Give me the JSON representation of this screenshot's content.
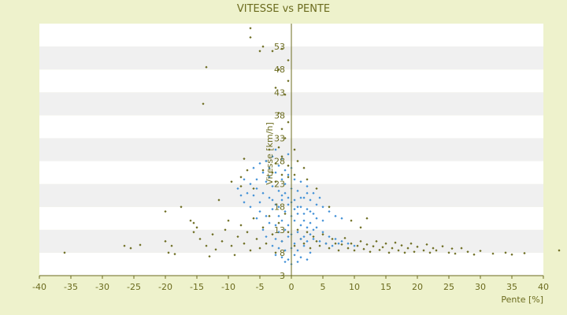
{
  "chart_data": {
    "type": "scatter",
    "title": "VITESSE vs PENTE",
    "xlabel": "Pente [%]",
    "ylabel": "Vitesse [km/h]",
    "xlim": [
      -40,
      40
    ],
    "ylim": [
      3,
      58
    ],
    "x_ticks": [
      -40,
      -35,
      -30,
      -25,
      -20,
      -15,
      -10,
      -5,
      0,
      5,
      10,
      15,
      20,
      25,
      30,
      35,
      40
    ],
    "y_ticks": [
      3,
      8,
      13,
      18,
      23,
      28,
      33,
      38,
      43,
      48,
      53
    ],
    "grid": true,
    "grid_bands": "alternating white / light grey horizontal bands",
    "legend": "none",
    "colors": {
      "background": "#eef2cc",
      "plot_band_light": "#ffffff",
      "plot_band_dark": "#f0f0f0",
      "axis_text": "#6b6b1e",
      "series_1": "#6b6b1e",
      "series_2": "#3f8fd6"
    },
    "series": [
      {
        "color": "#6b6b1e",
        "marker": "small diamond",
        "points": [
          [
            -36.0,
            8.0
          ],
          [
            -26.5,
            9.5
          ],
          [
            -25.5,
            9.0
          ],
          [
            -24.0,
            9.7
          ],
          [
            -20.0,
            10.5
          ],
          [
            -19.5,
            8.0
          ],
          [
            -19.0,
            9.5
          ],
          [
            -18.5,
            7.7
          ],
          [
            -20.0,
            17.0
          ],
          [
            -16.0,
            15.0
          ],
          [
            -15.5,
            12.5
          ],
          [
            -15.0,
            13.5
          ],
          [
            -14.5,
            11.0
          ],
          [
            -13.5,
            9.5
          ],
          [
            -13.0,
            7.2
          ],
          [
            -12.5,
            12.0
          ],
          [
            -12.0,
            8.7
          ],
          [
            -11.0,
            10.5
          ],
          [
            -10.5,
            13.0
          ],
          [
            -10.0,
            15.0
          ],
          [
            -9.5,
            9.5
          ],
          [
            -9.0,
            7.5
          ],
          [
            -8.5,
            11.5
          ],
          [
            -8.0,
            14.0
          ],
          [
            -7.5,
            10.0
          ],
          [
            -7.0,
            12.5
          ],
          [
            -6.5,
            8.5
          ],
          [
            -6.0,
            15.5
          ],
          [
            -5.5,
            11.0
          ],
          [
            -5.0,
            9.0
          ],
          [
            -4.5,
            13.5
          ],
          [
            -4.0,
            10.0
          ],
          [
            -3.5,
            16.0
          ],
          [
            -3.0,
            12.0
          ],
          [
            -2.5,
            8.0
          ],
          [
            -2.0,
            14.5
          ],
          [
            -1.5,
            10.5
          ],
          [
            -1.0,
            16.5
          ],
          [
            -0.5,
            12.5
          ],
          [
            0.5,
            9.5
          ],
          [
            1.0,
            13.0
          ],
          [
            1.5,
            11.0
          ],
          [
            2.0,
            10.0
          ],
          [
            2.5,
            12.5
          ],
          [
            3.0,
            9.0
          ],
          [
            3.5,
            11.5
          ],
          [
            4.0,
            10.5
          ],
          [
            4.5,
            9.5
          ],
          [
            5.0,
            12.0
          ],
          [
            5.5,
            10.0
          ],
          [
            6.0,
            9.0
          ],
          [
            6.5,
            11.0
          ],
          [
            7.0,
            10.0
          ],
          [
            7.5,
            8.5
          ],
          [
            8.0,
            9.8
          ],
          [
            8.5,
            11.2
          ],
          [
            9.0,
            9.0
          ],
          [
            9.5,
            10.0
          ],
          [
            10.0,
            8.5
          ],
          [
            10.5,
            9.5
          ],
          [
            11.0,
            10.5
          ],
          [
            11.5,
            8.8
          ],
          [
            12.0,
            9.8
          ],
          [
            12.5,
            8.2
          ],
          [
            13.0,
            9.4
          ],
          [
            13.5,
            10.5
          ],
          [
            14.0,
            8.6
          ],
          [
            14.5,
            9.2
          ],
          [
            15.0,
            10.0
          ],
          [
            15.5,
            8.0
          ],
          [
            16.0,
            9.0
          ],
          [
            16.5,
            10.2
          ],
          [
            17.0,
            8.5
          ],
          [
            17.5,
            9.6
          ],
          [
            18.0,
            8.0
          ],
          [
            18.5,
            9.0
          ],
          [
            19.0,
            10.0
          ],
          [
            19.5,
            8.2
          ],
          [
            20.0,
            9.3
          ],
          [
            21.0,
            8.5
          ],
          [
            21.5,
            9.8
          ],
          [
            22.0,
            8.0
          ],
          [
            22.5,
            9.0
          ],
          [
            23.0,
            8.5
          ],
          [
            24.0,
            9.4
          ],
          [
            25.0,
            8.0
          ],
          [
            25.5,
            8.9
          ],
          [
            26.0,
            7.8
          ],
          [
            27.0,
            9.0
          ],
          [
            28.0,
            8.2
          ],
          [
            29.0,
            7.6
          ],
          [
            30.0,
            8.4
          ],
          [
            32.0,
            7.8
          ],
          [
            34.0,
            8.0
          ],
          [
            35.0,
            7.6
          ],
          [
            37.0,
            7.9
          ],
          [
            42.5,
            8.5
          ],
          [
            -13.5,
            48.5
          ],
          [
            -14.0,
            40.5
          ],
          [
            -6.5,
            55.0
          ],
          [
            -5.0,
            52.0
          ],
          [
            -3.0,
            52.0
          ],
          [
            -2.0,
            48.0
          ],
          [
            -1.5,
            52.5
          ],
          [
            -1.0,
            42.5
          ],
          [
            -0.5,
            45.5
          ],
          [
            -2.0,
            38.5
          ],
          [
            -1.5,
            35.0
          ],
          [
            -0.5,
            36.5
          ],
          [
            -1.0,
            33.0
          ],
          [
            -2.0,
            31.0
          ],
          [
            -1.5,
            29.0
          ],
          [
            -2.5,
            27.5
          ],
          [
            -3.5,
            30.5
          ],
          [
            -4.0,
            28.0
          ],
          [
            -4.5,
            26.0
          ],
          [
            0.5,
            30.5
          ],
          [
            1.0,
            28.0
          ],
          [
            -0.5,
            27.0
          ],
          [
            -9.5,
            23.5
          ],
          [
            -11.5,
            19.5
          ],
          [
            -17.5,
            18.0
          ],
          [
            -15.5,
            14.5
          ],
          [
            9.5,
            15.0
          ],
          [
            11.0,
            13.5
          ],
          [
            12.0,
            15.5
          ],
          [
            6.0,
            18.0
          ],
          [
            4.0,
            22.0
          ],
          [
            2.5,
            24.0
          ],
          [
            2.0,
            26.5
          ],
          [
            0.5,
            25.0
          ],
          [
            -0.5,
            24.5
          ],
          [
            -1.5,
            25.0
          ],
          [
            -2.5,
            23.5
          ],
          [
            -3.0,
            25.5
          ],
          [
            -6.0,
            22.0
          ],
          [
            -7.0,
            26.0
          ],
          [
            -8.0,
            24.5
          ],
          [
            -7.5,
            28.5
          ],
          [
            -8.0,
            22.5
          ],
          [
            -2.5,
            44.0
          ],
          [
            -0.5,
            50.0
          ],
          [
            -6.5,
            57.0
          ],
          [
            -4.5,
            53.0
          ]
        ]
      },
      {
        "color": "#3f8fd6",
        "marker": "small diamond",
        "points": [
          [
            -6.0,
            20.5
          ],
          [
            -5.5,
            22.0
          ],
          [
            -5.0,
            19.0
          ],
          [
            -4.5,
            21.0
          ],
          [
            -4.0,
            23.5
          ],
          [
            -3.5,
            20.0
          ],
          [
            -3.0,
            22.5
          ],
          [
            -2.5,
            18.5
          ],
          [
            -2.0,
            21.5
          ],
          [
            -1.5,
            19.5
          ],
          [
            -1.0,
            23.0
          ],
          [
            -0.5,
            20.0
          ],
          [
            0.0,
            22.0
          ],
          [
            0.5,
            19.5
          ],
          [
            1.0,
            21.5
          ],
          [
            1.5,
            18.0
          ],
          [
            2.0,
            20.0
          ],
          [
            2.5,
            17.5
          ],
          [
            3.0,
            19.5
          ],
          [
            3.5,
            16.5
          ],
          [
            4.0,
            18.5
          ],
          [
            -5.0,
            17.0
          ],
          [
            -4.0,
            16.0
          ],
          [
            -3.0,
            17.5
          ],
          [
            -2.0,
            16.0
          ],
          [
            -1.0,
            17.0
          ],
          [
            0.0,
            16.0
          ],
          [
            1.0,
            16.5
          ],
          [
            2.0,
            15.0
          ],
          [
            3.0,
            14.5
          ],
          [
            4.0,
            15.5
          ],
          [
            5.0,
            15.0
          ],
          [
            -3.5,
            14.5
          ],
          [
            -2.5,
            14.0
          ],
          [
            -1.5,
            15.0
          ],
          [
            -0.5,
            14.0
          ],
          [
            0.5,
            15.0
          ],
          [
            1.5,
            14.0
          ],
          [
            2.5,
            13.5
          ],
          [
            3.5,
            13.0
          ],
          [
            -2.0,
            12.5
          ],
          [
            -1.0,
            13.0
          ],
          [
            0.0,
            12.0
          ],
          [
            1.0,
            12.5
          ],
          [
            2.0,
            11.5
          ],
          [
            3.0,
            12.0
          ],
          [
            -2.5,
            11.0
          ],
          [
            -1.5,
            10.5
          ],
          [
            -0.5,
            11.5
          ],
          [
            0.5,
            10.0
          ],
          [
            1.5,
            11.0
          ],
          [
            2.5,
            10.5
          ],
          [
            3.5,
            11.0
          ],
          [
            4.5,
            10.5
          ],
          [
            5.5,
            10.0
          ],
          [
            6.5,
            9.5
          ],
          [
            7.5,
            10.0
          ],
          [
            -3.0,
            9.5
          ],
          [
            -2.0,
            9.0
          ],
          [
            -1.0,
            8.5
          ],
          [
            0.0,
            9.0
          ],
          [
            1.0,
            8.5
          ],
          [
            2.0,
            9.5
          ],
          [
            3.0,
            8.0
          ],
          [
            -2.5,
            7.5
          ],
          [
            -1.5,
            7.0
          ],
          [
            -0.5,
            6.5
          ],
          [
            0.5,
            7.5
          ],
          [
            1.5,
            7.0
          ],
          [
            2.5,
            6.5
          ],
          [
            -1.0,
            6.0
          ],
          [
            0.0,
            5.5
          ],
          [
            1.0,
            6.0
          ],
          [
            -3.5,
            24.5
          ],
          [
            -2.5,
            25.5
          ],
          [
            -1.5,
            24.0
          ],
          [
            -0.5,
            25.0
          ],
          [
            0.5,
            24.0
          ],
          [
            1.5,
            23.5
          ],
          [
            2.5,
            22.5
          ],
          [
            -4.5,
            25.5
          ],
          [
            -3.5,
            26.5
          ],
          [
            -2.0,
            27.0
          ],
          [
            -1.0,
            26.0
          ],
          [
            0.0,
            26.5
          ],
          [
            -5.5,
            24.0
          ],
          [
            -6.5,
            23.0
          ],
          [
            -7.0,
            21.0
          ],
          [
            -7.5,
            19.0
          ],
          [
            -6.5,
            18.0
          ],
          [
            -5.5,
            15.5
          ],
          [
            -4.5,
            13.0
          ],
          [
            -4.0,
            11.5
          ],
          [
            3.5,
            21.0
          ],
          [
            4.5,
            20.0
          ],
          [
            5.0,
            18.0
          ],
          [
            6.0,
            17.0
          ],
          [
            7.0,
            16.0
          ],
          [
            8.0,
            15.5
          ],
          [
            -1.5,
            20.5
          ],
          [
            -0.5,
            18.5
          ],
          [
            0.5,
            17.5
          ],
          [
            1.5,
            20.0
          ],
          [
            2.5,
            21.0
          ],
          [
            -3.0,
            19.5
          ],
          [
            -2.0,
            18.0
          ],
          [
            -1.0,
            21.0
          ],
          [
            0.0,
            19.0
          ],
          [
            1.0,
            18.0
          ],
          [
            2.0,
            16.5
          ],
          [
            3.0,
            17.0
          ],
          [
            4.0,
            13.5
          ],
          [
            5.0,
            12.5
          ],
          [
            6.0,
            11.5
          ],
          [
            7.0,
            11.0
          ],
          [
            8.0,
            10.5
          ],
          [
            9.0,
            10.0
          ],
          [
            10.0,
            9.5
          ],
          [
            -4.0,
            28.0
          ],
          [
            -3.0,
            29.0
          ],
          [
            -2.5,
            30.5
          ],
          [
            -1.5,
            28.5
          ],
          [
            -0.5,
            29.5
          ],
          [
            -6.0,
            26.5
          ],
          [
            -5.0,
            27.5
          ],
          [
            -7.5,
            24.0
          ],
          [
            -8.0,
            20.5
          ],
          [
            -8.5,
            22.0
          ]
        ]
      }
    ]
  }
}
